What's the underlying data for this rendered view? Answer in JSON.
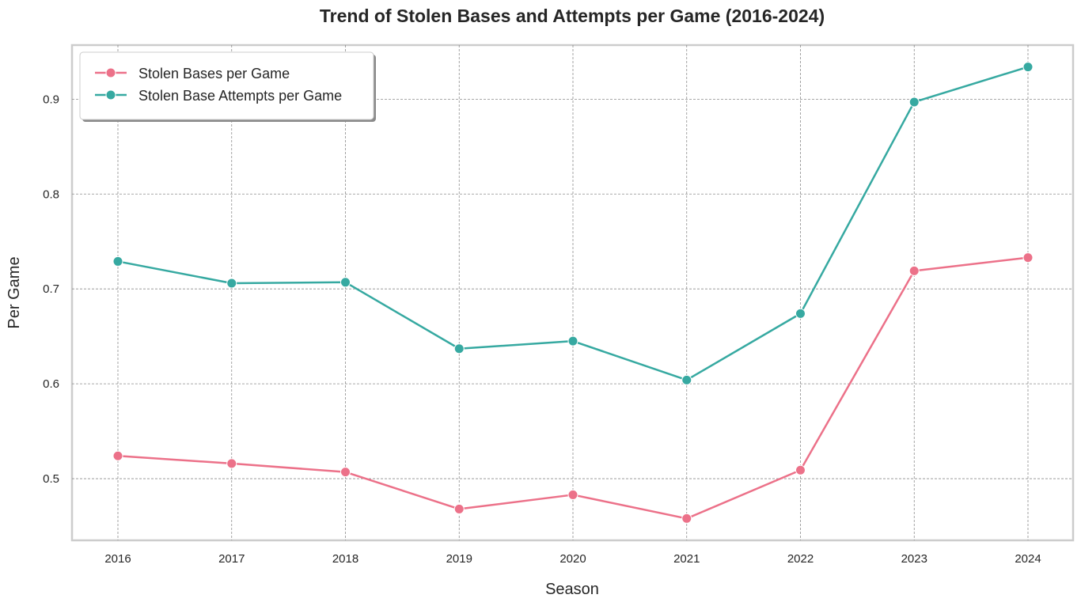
{
  "chart_data": {
    "type": "line",
    "title": "Trend of Stolen Bases and Attempts per Game (2016-2024)",
    "xlabel": "Season",
    "ylabel": "Per Game",
    "categories": [
      "2016",
      "2017",
      "2018",
      "2019",
      "2020",
      "2021",
      "2022",
      "2023",
      "2024"
    ],
    "ylim": [
      0.435,
      0.957
    ],
    "yticks": [
      "0.5",
      "0.6",
      "0.7",
      "0.8",
      "0.9"
    ],
    "grid": true,
    "legend_position": "top-left",
    "series": [
      {
        "name": "Stolen Bases per Game",
        "color": "#ec7189",
        "values": [
          0.524,
          0.516,
          0.507,
          0.468,
          0.483,
          0.458,
          0.509,
          0.719,
          0.733
        ]
      },
      {
        "name": "Stolen Base Attempts per Game",
        "color": "#36a9a1",
        "values": [
          0.729,
          0.706,
          0.707,
          0.637,
          0.645,
          0.604,
          0.674,
          0.897,
          0.934
        ]
      }
    ]
  }
}
